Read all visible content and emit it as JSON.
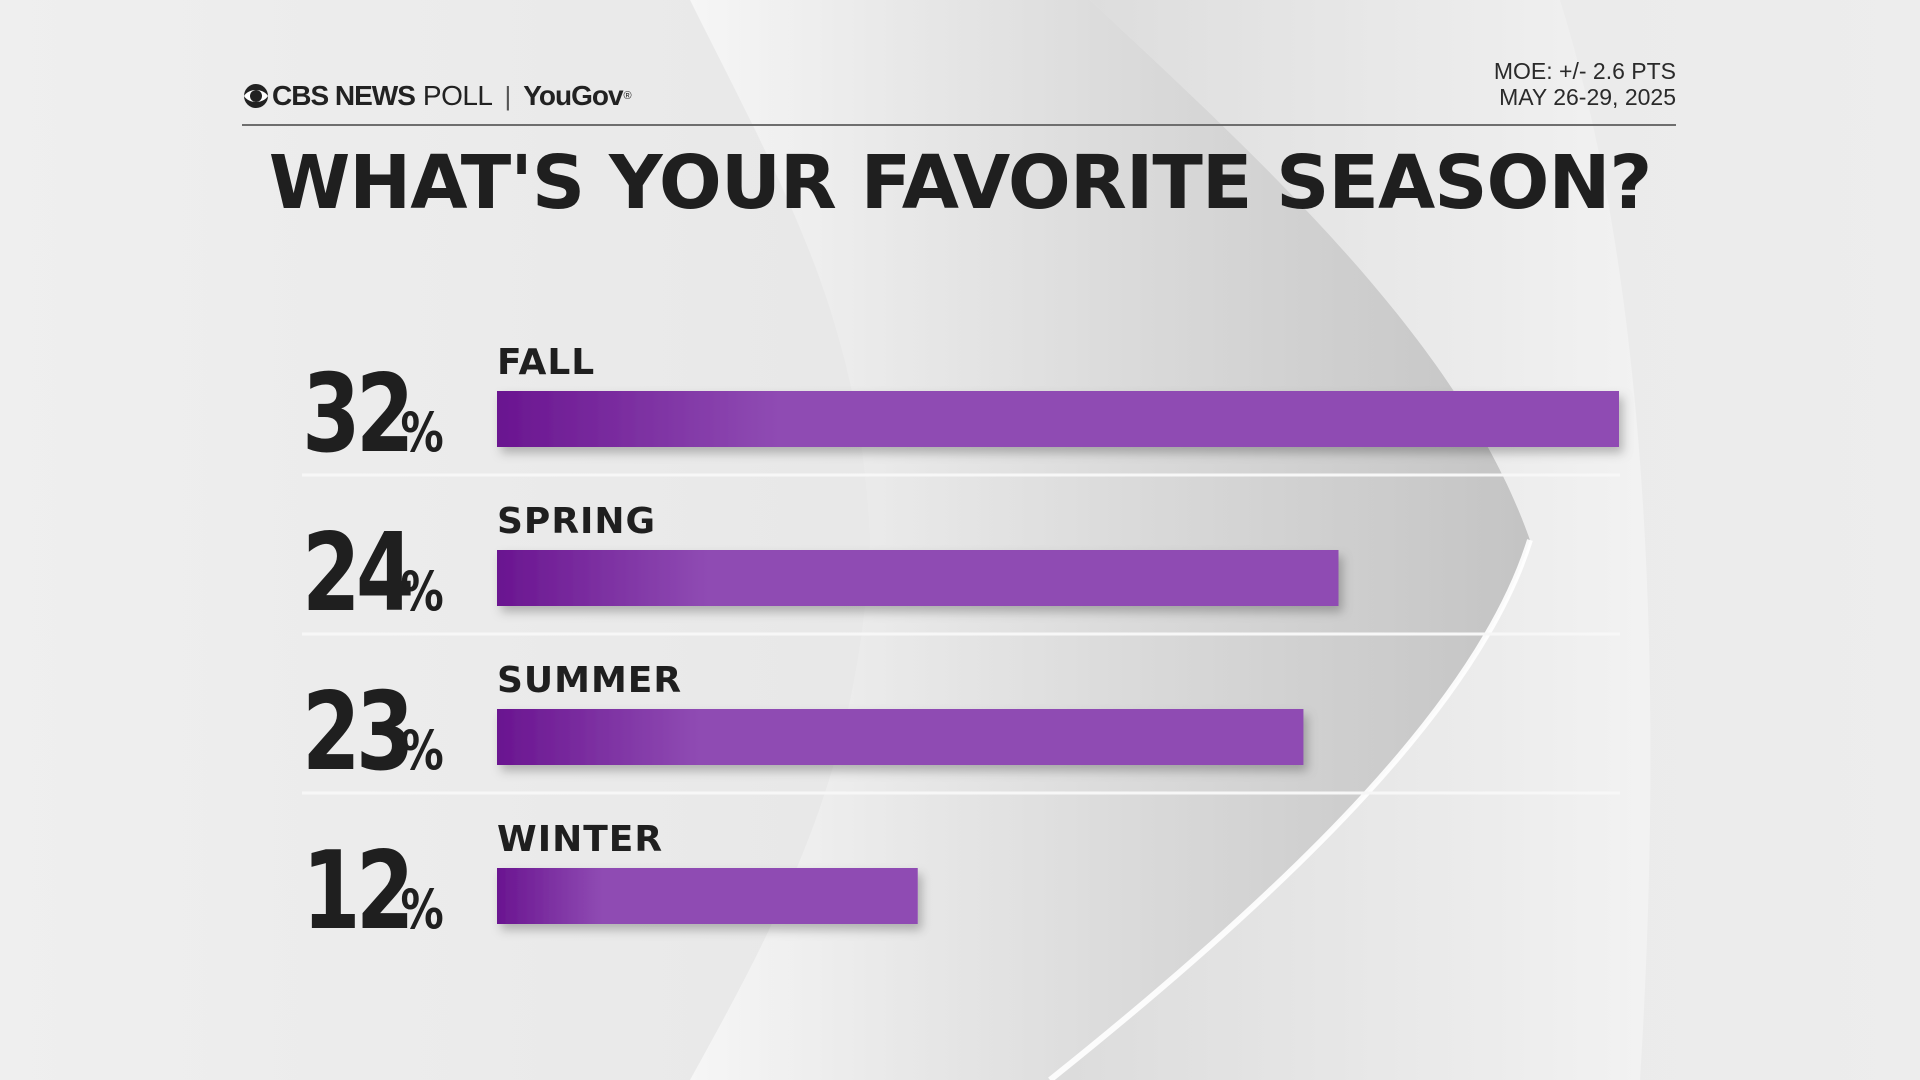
{
  "header": {
    "brand_cbs": "CBS NEWS",
    "brand_poll": "POLL",
    "brand_yougov": "YouGov",
    "moe": "MOE: +/- 2.6 PTS",
    "dates": "MAY 26-29, 2025"
  },
  "colors": {
    "bar_dark": "#6a1590",
    "bar_light": "#8f4bb3",
    "text": "#1f1f1f",
    "divider": "#f7f7f7"
  },
  "chart_data": {
    "type": "bar",
    "title": "WHAT'S YOUR FAVORITE SEASON?",
    "orientation": "horizontal",
    "categories": [
      "FALL",
      "SPRING",
      "SUMMER",
      "WINTER"
    ],
    "values": [
      32,
      24,
      23,
      12
    ],
    "value_suffix": "%",
    "xlim": [
      0,
      32
    ],
    "grid": false,
    "legend": "none"
  }
}
